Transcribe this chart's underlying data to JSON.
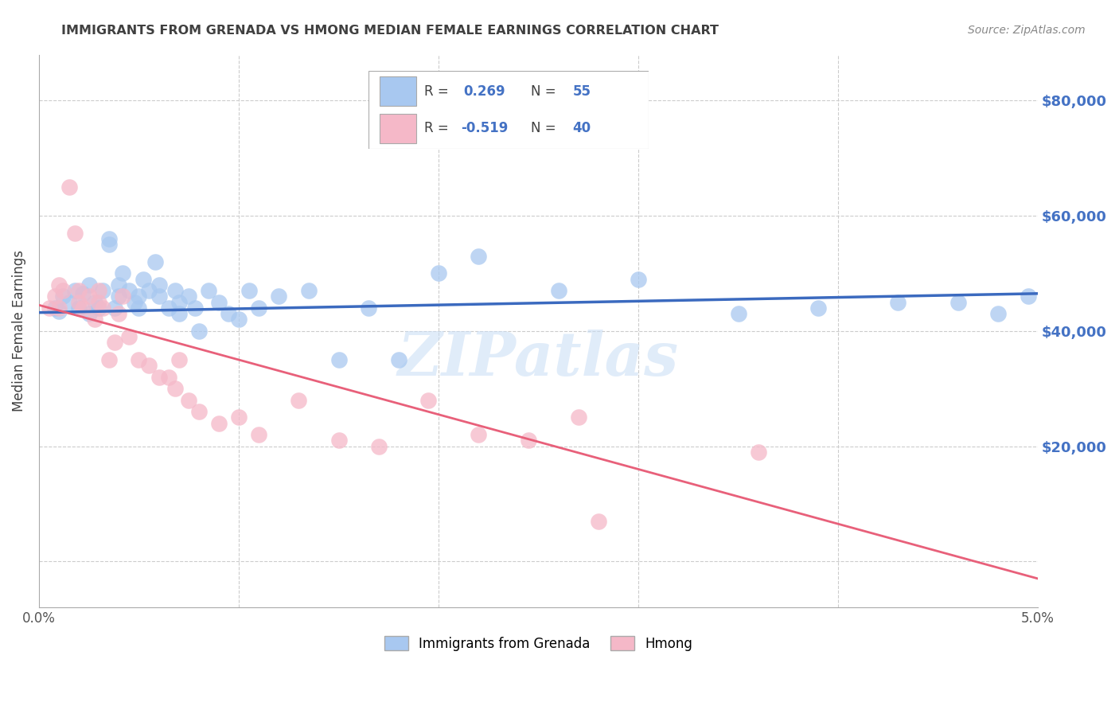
{
  "title": "IMMIGRANTS FROM GRENADA VS HMONG MEDIAN FEMALE EARNINGS CORRELATION CHART",
  "source": "Source: ZipAtlas.com",
  "ylabel": "Median Female Earnings",
  "xlim": [
    0.0,
    0.05
  ],
  "ylim": [
    -8000,
    88000
  ],
  "yticks": [
    0,
    20000,
    40000,
    60000,
    80000
  ],
  "xticks": [
    0.0,
    0.01,
    0.02,
    0.03,
    0.04,
    0.05
  ],
  "xtick_labels": [
    "0.0%",
    "",
    "",
    "",
    "",
    "5.0%"
  ],
  "right_ytick_labels": [
    "",
    "$20,000",
    "$40,000",
    "$60,000",
    "$80,000"
  ],
  "blue_scatter_color": "#a8c8f0",
  "pink_scatter_color": "#f5b8c8",
  "blue_line_color": "#3b6abf",
  "pink_line_color": "#e8607a",
  "title_color": "#404040",
  "right_tick_color": "#4472c4",
  "source_color": "#888888",
  "legend_r1_label": "R = ",
  "legend_r1_val": "0.269",
  "legend_n1_label": "N = ",
  "legend_n1_val": "55",
  "legend_r2_label": "R = ",
  "legend_r2_val": "-0.519",
  "legend_n2_label": "N = ",
  "legend_n2_val": "40",
  "blue_trendline_x0": 0.0,
  "blue_trendline_y0": 43200,
  "blue_trendline_x1": 0.05,
  "blue_trendline_y1": 46500,
  "pink_trendline_x0": 0.0,
  "pink_trendline_y0": 44500,
  "pink_trendline_x1": 0.05,
  "pink_trendline_y1": -3000,
  "grenada_x": [
    0.0008,
    0.001,
    0.0012,
    0.0015,
    0.0018,
    0.002,
    0.0022,
    0.0025,
    0.0025,
    0.0028,
    0.003,
    0.0032,
    0.0035,
    0.0035,
    0.0038,
    0.004,
    0.004,
    0.0042,
    0.0045,
    0.0048,
    0.005,
    0.005,
    0.0052,
    0.0055,
    0.0058,
    0.006,
    0.006,
    0.0065,
    0.0068,
    0.007,
    0.007,
    0.0075,
    0.0078,
    0.008,
    0.0085,
    0.009,
    0.0095,
    0.01,
    0.0105,
    0.011,
    0.012,
    0.0135,
    0.015,
    0.0165,
    0.018,
    0.02,
    0.022,
    0.026,
    0.03,
    0.035,
    0.039,
    0.043,
    0.046,
    0.048,
    0.0495
  ],
  "grenada_y": [
    44000,
    43500,
    46000,
    45000,
    47000,
    44000,
    46500,
    43000,
    48000,
    45000,
    44000,
    47000,
    56000,
    55000,
    44000,
    48000,
    46000,
    50000,
    47000,
    45000,
    44000,
    46000,
    49000,
    47000,
    52000,
    46000,
    48000,
    44000,
    47000,
    45000,
    43000,
    46000,
    44000,
    40000,
    47000,
    45000,
    43000,
    42000,
    47000,
    44000,
    46000,
    47000,
    35000,
    44000,
    35000,
    50000,
    53000,
    47000,
    49000,
    43000,
    44000,
    45000,
    45000,
    43000,
    46000
  ],
  "hmong_x": [
    0.0005,
    0.0008,
    0.001,
    0.001,
    0.0012,
    0.0015,
    0.0018,
    0.002,
    0.002,
    0.0022,
    0.0025,
    0.0028,
    0.003,
    0.003,
    0.0032,
    0.0035,
    0.0038,
    0.004,
    0.0042,
    0.0045,
    0.005,
    0.0055,
    0.006,
    0.0065,
    0.0068,
    0.007,
    0.0075,
    0.008,
    0.009,
    0.01,
    0.011,
    0.013,
    0.015,
    0.017,
    0.0195,
    0.022,
    0.0245,
    0.027,
    0.028,
    0.036
  ],
  "hmong_y": [
    44000,
    46000,
    48000,
    44000,
    47000,
    65000,
    57000,
    45000,
    47000,
    44000,
    46000,
    42000,
    45000,
    47000,
    44000,
    35000,
    38000,
    43000,
    46000,
    39000,
    35000,
    34000,
    32000,
    32000,
    30000,
    35000,
    28000,
    26000,
    24000,
    25000,
    22000,
    28000,
    21000,
    20000,
    28000,
    22000,
    21000,
    25000,
    7000,
    19000
  ]
}
